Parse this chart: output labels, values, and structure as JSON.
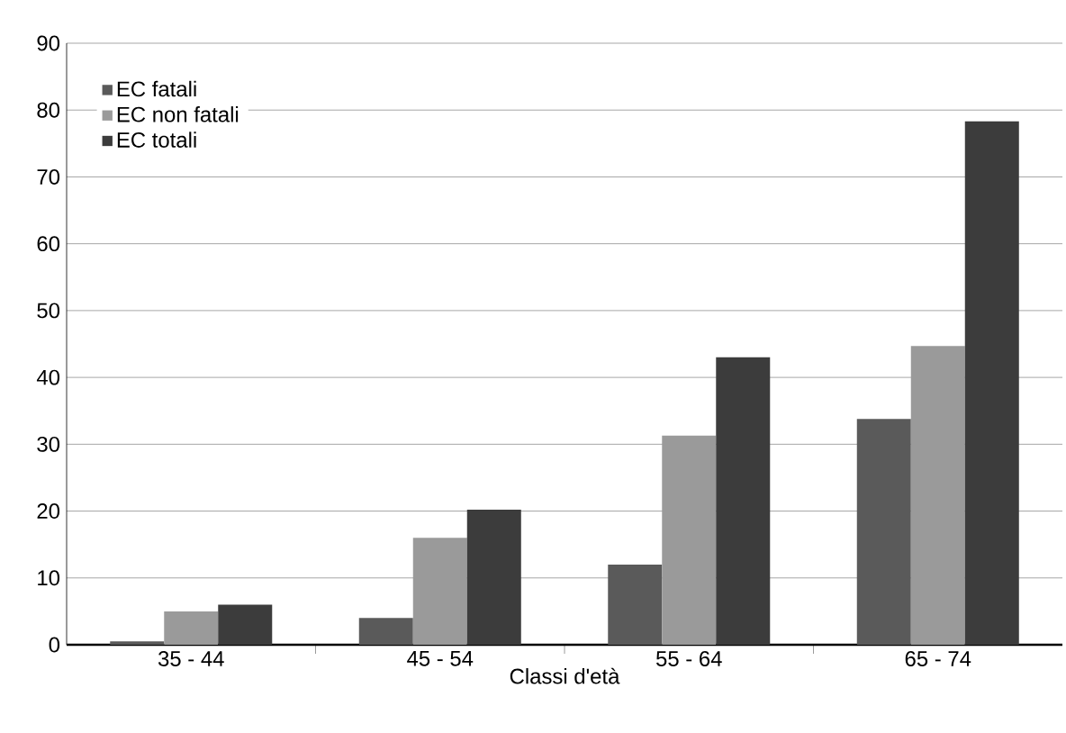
{
  "chart_data": {
    "type": "bar",
    "xlabel": "Classi d'età",
    "categories": [
      "35 - 44",
      "45 - 54",
      "55 - 64",
      "65 - 74"
    ],
    "series": [
      {
        "name": "EC fatali",
        "color": "#5a5a5a",
        "values": [
          0.5,
          4,
          12,
          33.8
        ]
      },
      {
        "name": "EC non fatali",
        "color": "#9a9a9a",
        "values": [
          5,
          16,
          31.3,
          44.7
        ]
      },
      {
        "name": "EC totali",
        "color": "#3c3c3c",
        "values": [
          6,
          20.2,
          43,
          78.3
        ]
      }
    ],
    "ylim": [
      0,
      90
    ],
    "yticks": [
      0,
      10,
      20,
      30,
      40,
      50,
      60,
      70,
      80,
      90
    ],
    "grid": "y",
    "legend": "top left"
  }
}
